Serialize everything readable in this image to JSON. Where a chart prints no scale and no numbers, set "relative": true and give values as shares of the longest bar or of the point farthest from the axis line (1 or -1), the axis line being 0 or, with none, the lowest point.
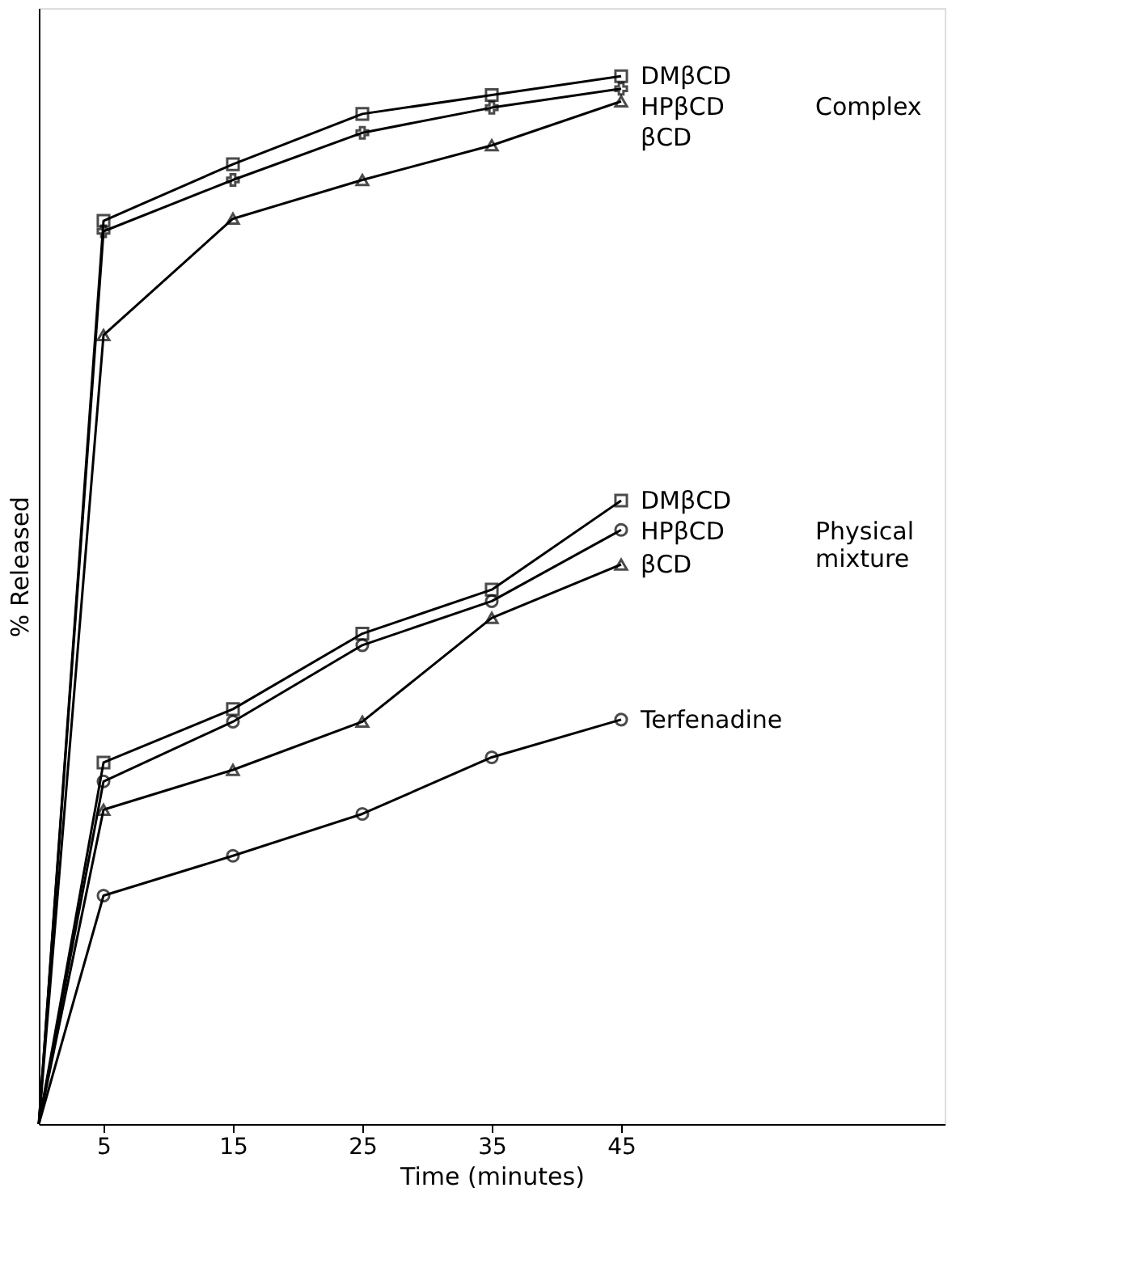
{
  "chart_data": {
    "type": "line",
    "relative": true,
    "xlabel": "Time (minutes)",
    "ylabel": "% Released",
    "x": [
      0,
      5,
      15,
      25,
      35,
      45
    ],
    "xlim": [
      0,
      70
    ],
    "xticks": [
      5,
      15,
      25,
      35,
      45
    ],
    "tick_labels": "x",
    "grid": false,
    "line_style": "solid",
    "series": [
      {
        "name": "DMβCD",
        "color": "#000000",
        "marker": "square",
        "values": [
          0,
          0.862,
          0.916,
          0.964,
          0.982,
          1
        ]
      },
      {
        "name": "HPβCD",
        "color": "#000000",
        "marker": "cross",
        "values": [
          0,
          0.852,
          0.901,
          0.946,
          0.97,
          0.988
        ]
      },
      {
        "name": "βCD",
        "color": "#000000",
        "marker": "triangle",
        "values": [
          0,
          0.753,
          0.864,
          0.901,
          0.934,
          0.976
        ]
      },
      {
        "name": "DMβCD",
        "color": "#000000",
        "marker": "square",
        "values": [
          0,
          0.345,
          0.396,
          0.468,
          0.51,
          0.595
        ]
      },
      {
        "name": "HPβCD",
        "color": "#000000",
        "marker": "circle",
        "values": [
          0,
          0.327,
          0.384,
          0.457,
          0.499,
          0.567
        ]
      },
      {
        "name": "βCD",
        "color": "#000000",
        "marker": "triangle",
        "values": [
          0,
          0.3,
          0.338,
          0.384,
          0.483,
          0.534
        ]
      },
      {
        "name": "Terfenadine",
        "color": "#000000",
        "marker": "circle",
        "values": [
          0,
          0.218,
          0.256,
          0.296,
          0.35,
          0.386
        ]
      }
    ],
    "annotations": [
      "Complex",
      "Physical mixture"
    ]
  }
}
